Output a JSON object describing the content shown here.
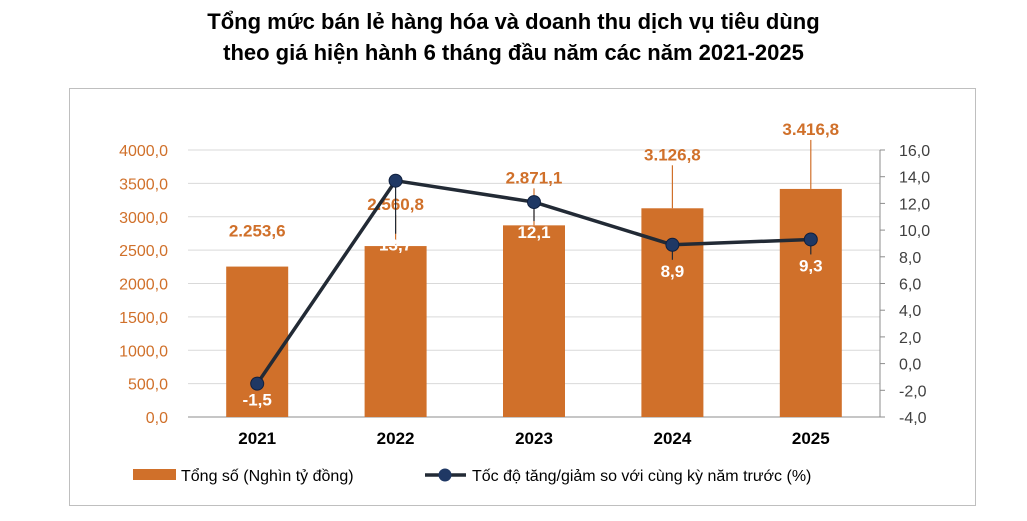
{
  "title_line1": "Tổng mức bán lẻ hàng hóa và doanh thu dịch vụ tiêu dùng",
  "title_line2": "theo giá hiện hành 6 tháng đầu năm các năm 2021-2025",
  "colors": {
    "bar": "#d0702a",
    "line": "#222a35",
    "marker": "#1f3864",
    "left_axis": "#d0702a",
    "grid": "#d9d9d9"
  },
  "chart_data": {
    "type": "bar",
    "categories": [
      "2021",
      "2022",
      "2023",
      "2024",
      "2025"
    ],
    "series": [
      {
        "name": "Tổng số (Nghìn tỷ đồng)",
        "type": "bar",
        "axis": "left",
        "values": [
          2253.6,
          2560.8,
          2871.1,
          3126.8,
          3416.8
        ],
        "labels": [
          "2.253,6",
          "2.560,8",
          "2.871,1",
          "3.126,8",
          "3.416,8"
        ]
      },
      {
        "name": "Tốc độ tăng/giảm so với cùng kỳ năm trước (%)",
        "type": "line",
        "axis": "right",
        "values": [
          -1.5,
          13.7,
          12.1,
          8.9,
          9.3
        ],
        "labels": [
          "-1,5",
          "13,7",
          "12,1",
          "8,9",
          "9,3"
        ]
      }
    ],
    "left_axis": {
      "min": 0,
      "max": 4000,
      "step": 500,
      "ticks": [
        "0,0",
        "500,0",
        "1000,0",
        "1500,0",
        "2000,0",
        "2500,0",
        "3000,0",
        "3500,0",
        "4000,0"
      ]
    },
    "right_axis": {
      "min": -4,
      "max": 16,
      "step": 2,
      "ticks": [
        "-4,0",
        "-2,0",
        "0,0",
        "2,0",
        "4,0",
        "6,0",
        "8,0",
        "10,0",
        "12,0",
        "14,0",
        "16,0"
      ]
    },
    "grid": true,
    "legend_position": "bottom"
  }
}
